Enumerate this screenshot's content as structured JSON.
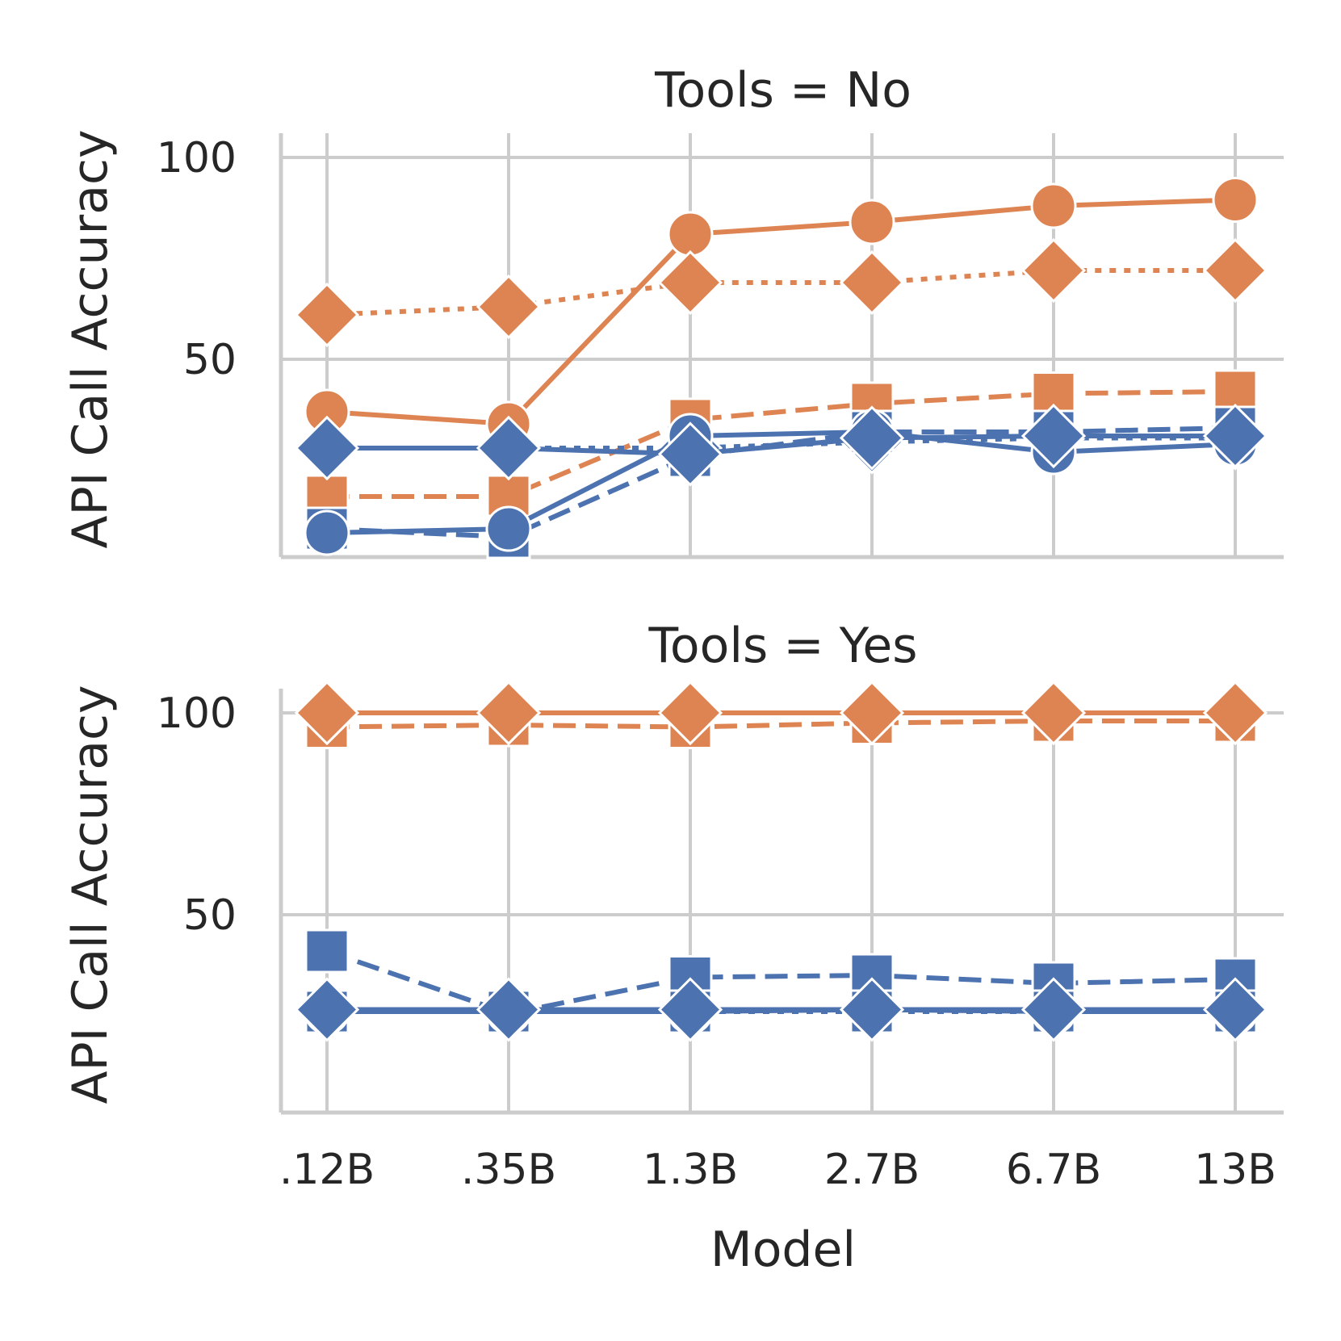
{
  "chart_data": [
    {
      "type": "line",
      "title": "Tools = No",
      "xlabel": "",
      "ylabel": "API Call Accuracy",
      "categories": [
        ".12B",
        ".35B",
        "1.3B",
        "2.7B",
        "6.7B",
        "13B"
      ],
      "ylim": [
        1,
        106
      ],
      "yticks": [
        50,
        100
      ],
      "grid": true,
      "series": [
        {
          "color": "#dd8452",
          "marker": "circle",
          "dash": "solid",
          "values": [
            37,
            34,
            81,
            84,
            88,
            89.5
          ]
        },
        {
          "color": "#dd8452",
          "marker": "diamond",
          "dash": "dotted",
          "values": [
            61,
            63,
            69,
            69,
            72,
            72
          ]
        },
        {
          "color": "#dd8452",
          "marker": "square",
          "dash": "dashed",
          "values": [
            16,
            16,
            35,
            39,
            41.5,
            42
          ]
        },
        {
          "color": "#4c72b0",
          "marker": "diamond",
          "dash": "dotted",
          "values": [
            28,
            28,
            28,
            29.5,
            30.5,
            30.5
          ]
        },
        {
          "color": "#4c72b0",
          "marker": "square",
          "dash": "dashed",
          "values": [
            8,
            6,
            26,
            32,
            32,
            33
          ]
        },
        {
          "color": "#4c72b0",
          "marker": "circle",
          "dash": "solid",
          "values": [
            7,
            8,
            31,
            32,
            27,
            29
          ]
        },
        {
          "color": "#4c72b0",
          "marker": "diamond",
          "dash": "solid",
          "values": [
            28,
            28,
            26.5,
            30.5,
            31,
            31
          ]
        }
      ]
    },
    {
      "type": "line",
      "title": "Tools = Yes",
      "xlabel": "Model",
      "ylabel": "API Call Accuracy",
      "categories": [
        ".12B",
        ".35B",
        "1.3B",
        "2.7B",
        "6.7B",
        "13B"
      ],
      "ylim": [
        1,
        106
      ],
      "yticks": [
        50,
        100
      ],
      "grid": true,
      "series": [
        {
          "color": "#dd8452",
          "marker": "square",
          "dash": "dashed",
          "values": [
            96.5,
            97,
            96.5,
            97.5,
            98,
            98
          ]
        },
        {
          "color": "#dd8452",
          "marker": "circle",
          "dash": "solid",
          "values": [
            100,
            100,
            100,
            100,
            100,
            100
          ]
        },
        {
          "color": "#dd8452",
          "marker": "diamond",
          "dash": "dotted",
          "values": [
            100,
            100,
            100,
            100,
            100,
            100
          ]
        },
        {
          "color": "#dd8452",
          "marker": "diamond",
          "dash": "solid",
          "values": [
            100,
            100,
            100,
            100,
            100,
            100
          ]
        },
        {
          "color": "#4c72b0",
          "marker": "square",
          "dash": "dashed",
          "values": [
            41,
            25.5,
            34.5,
            35,
            33,
            34
          ]
        },
        {
          "color": "#4c72b0",
          "marker": "square",
          "dash": "dotted",
          "values": [
            26,
            26,
            26,
            26,
            26,
            26
          ]
        },
        {
          "color": "#4c72b0",
          "marker": "circle",
          "dash": "solid",
          "values": [
            26,
            26,
            26,
            26.5,
            26,
            26
          ]
        },
        {
          "color": "#4c72b0",
          "marker": "diamond",
          "dash": "solid",
          "values": [
            26.5,
            26.5,
            26.5,
            26.5,
            26.5,
            26.5
          ]
        }
      ]
    }
  ]
}
